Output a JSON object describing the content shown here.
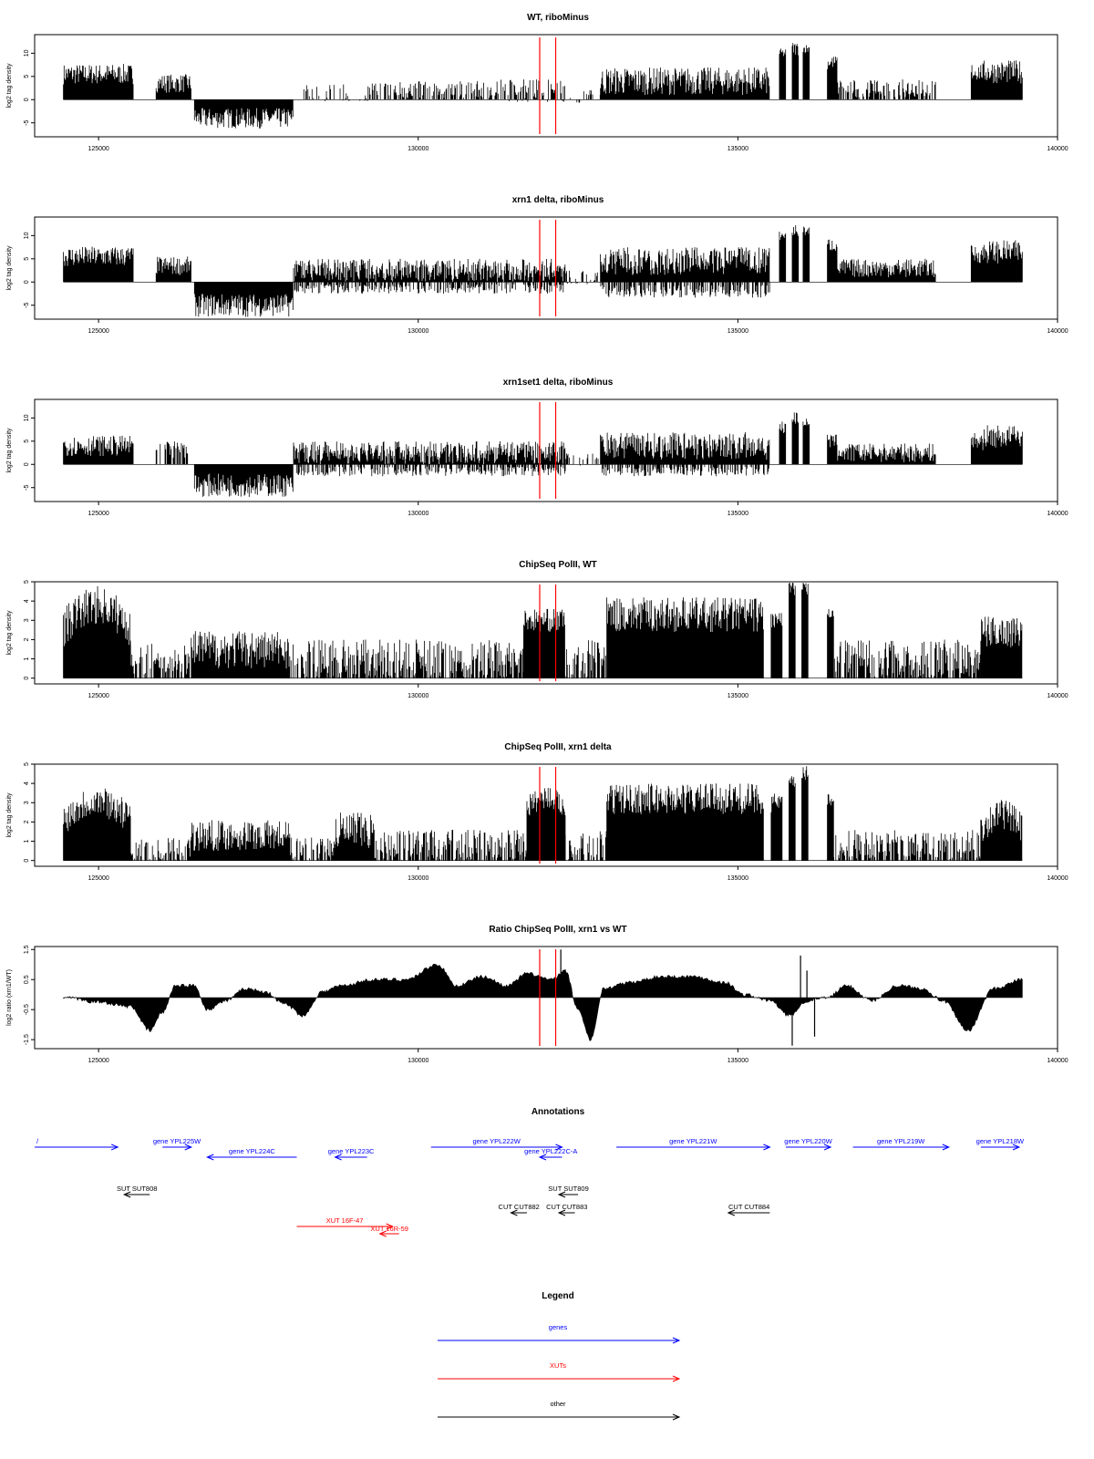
{
  "colors": {
    "data": "#000000",
    "marker": "#ff0000",
    "genes": "#0000ff",
    "xuts": "#ff0000",
    "other": "#000000"
  },
  "chart_data": [
    {
      "type": "bar",
      "title": "WT, riboMinus",
      "ylabel": "log2 tag density",
      "xlim": [
        124000,
        140000
      ],
      "ylim": [
        -8,
        14
      ],
      "xticks": [
        "125000",
        "130000",
        "135000",
        "140000"
      ],
      "yticks": [
        "-5",
        "0",
        "5",
        "10"
      ],
      "markers_x": [
        131900,
        132150
      ],
      "segments": [
        {
          "x0": 124450,
          "x1": 125550,
          "mean": 5.5,
          "amp": 2.2
        },
        {
          "x0": 125900,
          "x1": 126450,
          "mean": 3.5,
          "amp": 2.0
        },
        {
          "x0": 126500,
          "x1": 128050,
          "mean": -4.0,
          "amp": 2.2
        },
        {
          "x0": 128200,
          "x1": 129300,
          "mean": 1.5,
          "amp": 2.0,
          "sparse": 0.35
        },
        {
          "x0": 129300,
          "x1": 131200,
          "mean": 2.0,
          "amp": 2.0,
          "sparse": 0.6
        },
        {
          "x0": 131200,
          "x1": 132300,
          "mean": 2.0,
          "amp": 2.5,
          "sparse": 0.6
        },
        {
          "x0": 132300,
          "x1": 132850,
          "mean": 0.8,
          "amp": 1.5,
          "sparse": 0.3
        },
        {
          "x0": 132850,
          "x1": 135500,
          "mean": 4.0,
          "amp": 3.0
        },
        {
          "x0": 135650,
          "x1": 135750,
          "mean": 10.0,
          "amp": 1.0
        },
        {
          "x0": 135850,
          "x1": 135950,
          "mean": 11.0,
          "amp": 1.5
        },
        {
          "x0": 136020,
          "x1": 136120,
          "mean": 11.0,
          "amp": 1.0
        },
        {
          "x0": 136400,
          "x1": 136550,
          "mean": 8.0,
          "amp": 1.5
        },
        {
          "x0": 136550,
          "x1": 138100,
          "mean": 2.5,
          "amp": 2.0,
          "sparse": 0.7
        },
        {
          "x0": 138650,
          "x1": 138850,
          "mean": 6.0,
          "amp": 2.0
        },
        {
          "x0": 138850,
          "x1": 139450,
          "mean": 6.0,
          "amp": 2.5
        }
      ]
    },
    {
      "type": "bar",
      "title": "xrn1 delta, riboMinus",
      "ylabel": "log2 tag density",
      "xlim": [
        124000,
        140000
      ],
      "ylim": [
        -8,
        14
      ],
      "xticks": [
        "125000",
        "130000",
        "135000",
        "140000"
      ],
      "yticks": [
        "-5",
        "0",
        "5",
        "10"
      ],
      "markers_x": [
        131900,
        132150
      ],
      "segments": [
        {
          "x0": 124450,
          "x1": 125550,
          "mean": 5.5,
          "amp": 2.2
        },
        {
          "x0": 125900,
          "x1": 126450,
          "mean": 3.5,
          "amp": 2.0
        },
        {
          "x0": 126500,
          "x1": 128050,
          "mean": -5.0,
          "amp": 2.5
        },
        {
          "x0": 128050,
          "x1": 132300,
          "mean": 2.5,
          "amp": 2.5,
          "neg": -1.5
        },
        {
          "x0": 132300,
          "x1": 132850,
          "mean": 1.0,
          "amp": 1.5,
          "sparse": 0.4
        },
        {
          "x0": 132850,
          "x1": 135500,
          "mean": 4.5,
          "amp": 3.0,
          "neg": -2.0
        },
        {
          "x0": 135650,
          "x1": 135750,
          "mean": 10.0,
          "amp": 1.0
        },
        {
          "x0": 135850,
          "x1": 135950,
          "mean": 11.0,
          "amp": 1.5
        },
        {
          "x0": 136020,
          "x1": 136120,
          "mean": 11.0,
          "amp": 1.0
        },
        {
          "x0": 136400,
          "x1": 136550,
          "mean": 8.0,
          "amp": 1.5
        },
        {
          "x0": 136550,
          "x1": 138100,
          "mean": 3.0,
          "amp": 2.0
        },
        {
          "x0": 138650,
          "x1": 138850,
          "mean": 6.0,
          "amp": 2.0
        },
        {
          "x0": 138850,
          "x1": 139450,
          "mean": 6.5,
          "amp": 2.5
        }
      ]
    },
    {
      "type": "bar",
      "title": "xrn1set1 delta, riboMinus",
      "ylabel": "log2 tag density",
      "xlim": [
        124000,
        140000
      ],
      "ylim": [
        -8,
        14
      ],
      "xticks": [
        "125000",
        "130000",
        "135000",
        "140000"
      ],
      "yticks": [
        "-5",
        "0",
        "5",
        "10"
      ],
      "markers_x": [
        131900,
        132150
      ],
      "segments": [
        {
          "x0": 124450,
          "x1": 125550,
          "mean": 4.0,
          "amp": 2.2
        },
        {
          "x0": 125900,
          "x1": 126400,
          "mean": 3.0,
          "amp": 2.0,
          "sparse": 0.5
        },
        {
          "x0": 126500,
          "x1": 128050,
          "mean": -4.5,
          "amp": 2.5
        },
        {
          "x0": 128050,
          "x1": 132300,
          "mean": 2.5,
          "amp": 2.5,
          "neg": -1.5
        },
        {
          "x0": 132300,
          "x1": 132850,
          "mean": 1.0,
          "amp": 1.5,
          "sparse": 0.4
        },
        {
          "x0": 132850,
          "x1": 135500,
          "mean": 4.0,
          "amp": 3.0,
          "neg": -1.5
        },
        {
          "x0": 135650,
          "x1": 135750,
          "mean": 8.0,
          "amp": 1.5
        },
        {
          "x0": 135850,
          "x1": 135950,
          "mean": 10.0,
          "amp": 1.5
        },
        {
          "x0": 136020,
          "x1": 136120,
          "mean": 9.0,
          "amp": 1.0
        },
        {
          "x0": 136400,
          "x1": 136550,
          "mean": 5.0,
          "amp": 1.5
        },
        {
          "x0": 136550,
          "x1": 138100,
          "mean": 2.5,
          "amp": 2.0
        },
        {
          "x0": 138650,
          "x1": 138850,
          "mean": 5.0,
          "amp": 2.0
        },
        {
          "x0": 138850,
          "x1": 139450,
          "mean": 6.0,
          "amp": 2.5
        }
      ]
    },
    {
      "type": "bar",
      "title": "ChipSeq PolII, WT",
      "ylabel": "log2 tag density",
      "xlim": [
        124000,
        140000
      ],
      "ylim": [
        -0.3,
        5
      ],
      "xticks": [
        "125000",
        "130000",
        "135000",
        "140000"
      ],
      "yticks": [
        "0",
        "1",
        "2",
        "3",
        "4",
        "5"
      ],
      "markers_x": [
        131900,
        132150
      ],
      "segments": [
        {
          "x0": 124450,
          "x1": 125500,
          "mean": 3.2,
          "amp": 1.0,
          "hump": 1.2
        },
        {
          "x0": 125500,
          "x1": 126450,
          "mean": 1.0,
          "amp": 0.8,
          "sparse": 0.7
        },
        {
          "x0": 126450,
          "x1": 128000,
          "mean": 1.5,
          "amp": 1.0
        },
        {
          "x0": 128000,
          "x1": 131650,
          "mean": 1.0,
          "amp": 1.0,
          "sparse": 0.7
        },
        {
          "x0": 131650,
          "x1": 132300,
          "mean": 3.0,
          "amp": 0.6
        },
        {
          "x0": 132300,
          "x1": 132950,
          "mean": 1.0,
          "amp": 1.0,
          "sparse": 0.6
        },
        {
          "x0": 132950,
          "x1": 135400,
          "mean": 3.3,
          "amp": 0.9
        },
        {
          "x0": 135520,
          "x1": 135700,
          "mean": 3.0,
          "amp": 0.5
        },
        {
          "x0": 135800,
          "x1": 135900,
          "mean": 4.6,
          "amp": 0.4
        },
        {
          "x0": 136000,
          "x1": 136100,
          "mean": 4.6,
          "amp": 0.4
        },
        {
          "x0": 136400,
          "x1": 136500,
          "mean": 3.5,
          "amp": 0.4
        },
        {
          "x0": 136500,
          "x1": 138800,
          "mean": 1.0,
          "amp": 1.0,
          "sparse": 0.75
        },
        {
          "x0": 138800,
          "x1": 139450,
          "mean": 2.4,
          "amp": 0.8
        }
      ]
    },
    {
      "type": "bar",
      "title": "ChipSeq PolII, xrn1 delta",
      "ylabel": "log2 tag density",
      "xlim": [
        124000,
        140000
      ],
      "ylim": [
        -0.3,
        5
      ],
      "xticks": [
        "125000",
        "130000",
        "135000",
        "140000"
      ],
      "yticks": [
        "0",
        "1",
        "2",
        "3",
        "4",
        "5"
      ],
      "markers_x": [
        131900,
        132150
      ],
      "segments": [
        {
          "x0": 124450,
          "x1": 125500,
          "mean": 2.6,
          "amp": 0.8,
          "hump": 1.0
        },
        {
          "x0": 125500,
          "x1": 126450,
          "mean": 0.6,
          "amp": 0.6,
          "sparse": 0.6
        },
        {
          "x0": 126450,
          "x1": 128000,
          "mean": 1.3,
          "amp": 0.8
        },
        {
          "x0": 128000,
          "x1": 128700,
          "mean": 0.6,
          "amp": 0.6,
          "sparse": 0.6
        },
        {
          "x0": 128700,
          "x1": 129300,
          "mean": 1.5,
          "amp": 1.0
        },
        {
          "x0": 129300,
          "x1": 131700,
          "mean": 0.8,
          "amp": 0.8,
          "sparse": 0.7
        },
        {
          "x0": 131700,
          "x1": 132300,
          "mean": 3.0,
          "amp": 0.6,
          "hump": 0.6
        },
        {
          "x0": 132300,
          "x1": 132950,
          "mean": 0.8,
          "amp": 0.8,
          "sparse": 0.6
        },
        {
          "x0": 132950,
          "x1": 135400,
          "mean": 3.2,
          "amp": 0.8
        },
        {
          "x0": 135520,
          "x1": 135700,
          "mean": 3.0,
          "amp": 0.5
        },
        {
          "x0": 135800,
          "x1": 135900,
          "mean": 4.0,
          "amp": 0.4
        },
        {
          "x0": 136000,
          "x1": 136100,
          "mean": 4.5,
          "amp": 0.4
        },
        {
          "x0": 136400,
          "x1": 136500,
          "mean": 3.2,
          "amp": 0.4
        },
        {
          "x0": 136500,
          "x1": 138800,
          "mean": 0.8,
          "amp": 0.8,
          "sparse": 0.7
        },
        {
          "x0": 138800,
          "x1": 139450,
          "mean": 2.0,
          "amp": 0.8,
          "hump": 0.8
        }
      ]
    },
    {
      "type": "area",
      "title": "Ratio ChipSeq PolII, xrn1 vs WT",
      "ylabel": "log2 ratio (xrn1/WT)",
      "xlim": [
        124000,
        140000
      ],
      "ylim": [
        -1.8,
        1.6
      ],
      "xticks": [
        "125000",
        "130000",
        "135000",
        "140000"
      ],
      "yticks": [
        "-1.5",
        "-0.5",
        "0.5",
        "1.5"
      ],
      "markers_x": [
        131900,
        132150
      ],
      "baseline": -0.1,
      "keypoints": [
        [
          124450,
          -0.1
        ],
        [
          125000,
          -0.25
        ],
        [
          125500,
          -0.4
        ],
        [
          125800,
          -1.2
        ],
        [
          126000,
          -0.6
        ],
        [
          126200,
          0.3
        ],
        [
          126500,
          0.3
        ],
        [
          126700,
          -0.5
        ],
        [
          127000,
          -0.2
        ],
        [
          127300,
          0.2
        ],
        [
          127600,
          0.1
        ],
        [
          127900,
          -0.3
        ],
        [
          128200,
          -0.7
        ],
        [
          128500,
          0.1
        ],
        [
          128800,
          0.3
        ],
        [
          129300,
          0.5
        ],
        [
          129800,
          0.5
        ],
        [
          130300,
          1.0
        ],
        [
          130600,
          0.3
        ],
        [
          131000,
          0.6
        ],
        [
          131400,
          0.3
        ],
        [
          131700,
          0.7
        ],
        [
          132100,
          0.5
        ],
        [
          132300,
          0.8
        ],
        [
          132500,
          -0.5
        ],
        [
          132700,
          -1.5
        ],
        [
          132900,
          0.2
        ],
        [
          133300,
          0.4
        ],
        [
          133800,
          0.6
        ],
        [
          134300,
          0.6
        ],
        [
          134800,
          0.4
        ],
        [
          135100,
          0.0
        ],
        [
          135500,
          -0.2
        ],
        [
          135800,
          -0.7
        ],
        [
          136100,
          -0.2
        ],
        [
          136400,
          -0.1
        ],
        [
          136700,
          0.3
        ],
        [
          137100,
          -0.2
        ],
        [
          137500,
          0.3
        ],
        [
          137900,
          0.2
        ],
        [
          138200,
          -0.2
        ],
        [
          138600,
          -1.2
        ],
        [
          139000,
          0.2
        ],
        [
          139450,
          0.5
        ]
      ],
      "spikes": [
        [
          132230,
          1.5
        ],
        [
          135850,
          -1.7
        ],
        [
          135980,
          1.3
        ],
        [
          136080,
          0.8
        ],
        [
          136200,
          -1.4
        ]
      ]
    }
  ],
  "annotations": {
    "title": "Annotations",
    "items": [
      {
        "label": "/",
        "x0": 124000,
        "x1": 125300,
        "dir": "right",
        "color": "#0000ff",
        "row": 0,
        "name": "annotation-partial-gene"
      },
      {
        "label": "gene YPL225W",
        "x0": 126000,
        "x1": 126450,
        "dir": "right",
        "color": "#0000ff",
        "row": 0,
        "name": "annotation-gene-ypl225w"
      },
      {
        "label": "gene YPL224C",
        "x0": 126700,
        "x1": 128100,
        "dir": "left",
        "color": "#0000ff",
        "row": 1,
        "name": "annotation-gene-ypl224c"
      },
      {
        "label": "gene YPL223C",
        "x0": 128700,
        "x1": 129200,
        "dir": "left",
        "color": "#0000ff",
        "row": 1,
        "name": "annotation-gene-ypl223c"
      },
      {
        "label": "gene YPL222W",
        "x0": 130200,
        "x1": 132250,
        "dir": "right",
        "color": "#0000ff",
        "row": 0,
        "name": "annotation-gene-ypl222w"
      },
      {
        "label": "gene YPL222C-A",
        "x0": 131900,
        "x1": 132250,
        "dir": "left",
        "color": "#0000ff",
        "row": 1,
        "name": "annotation-gene-ypl222c-a"
      },
      {
        "label": "gene YPL221W",
        "x0": 133100,
        "x1": 135500,
        "dir": "right",
        "color": "#0000ff",
        "row": 0,
        "name": "annotation-gene-ypl221w"
      },
      {
        "label": "gene YPL220W",
        "x0": 135750,
        "x1": 136450,
        "dir": "right",
        "color": "#0000ff",
        "row": 0,
        "name": "annotation-gene-ypl220w"
      },
      {
        "label": "gene YPL219W",
        "x0": 136800,
        "x1": 138300,
        "dir": "right",
        "color": "#0000ff",
        "row": 0,
        "name": "annotation-gene-ypl219w"
      },
      {
        "label": "gene YPL218W",
        "x0": 138800,
        "x1": 139400,
        "dir": "right",
        "color": "#0000ff",
        "row": 0,
        "name": "annotation-gene-ypl218w"
      },
      {
        "label": "SUT SUT808",
        "x0": 125400,
        "x1": 125800,
        "dir": "left",
        "color": "#000000",
        "row": 2,
        "name": "annotation-sut808"
      },
      {
        "label": "SUT SUT809",
        "x0": 132200,
        "x1": 132500,
        "dir": "left",
        "color": "#000000",
        "row": 2,
        "name": "annotation-sut809"
      },
      {
        "label": "CUT CUT882",
        "x0": 131450,
        "x1": 131700,
        "dir": "left",
        "color": "#000000",
        "row": 3,
        "name": "annotation-cut882"
      },
      {
        "label": "CUT CUT883",
        "x0": 132200,
        "x1": 132450,
        "dir": "left",
        "color": "#000000",
        "row": 3,
        "name": "annotation-cut883"
      },
      {
        "label": "CUT CUT884",
        "x0": 134850,
        "x1": 135500,
        "dir": "left",
        "color": "#000000",
        "row": 3,
        "name": "annotation-cut884"
      },
      {
        "label": "XUT 16F-47",
        "x0": 128100,
        "x1": 129600,
        "dir": "right",
        "color": "#ff0000",
        "row": 4,
        "name": "annotation-xut-16f-47"
      },
      {
        "label": "XUT 16R-59",
        "x0": 129400,
        "x1": 129700,
        "dir": "left",
        "color": "#ff0000",
        "row": 5,
        "name": "annotation-xut-16r-59"
      }
    ]
  },
  "legend": {
    "title": "Legend",
    "entries": [
      {
        "label": "genes",
        "color": "#0000ff",
        "name": "legend-genes"
      },
      {
        "label": "XUTs",
        "color": "#ff0000",
        "name": "legend-xuts"
      },
      {
        "label": "other",
        "color": "#000000",
        "name": "legend-other"
      }
    ]
  }
}
